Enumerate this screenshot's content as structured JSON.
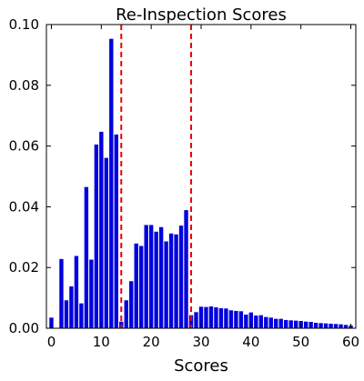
{
  "chart_data": {
    "type": "bar",
    "title": "Re-Inspection Scores",
    "xlabel": "Scores",
    "ylabel": "",
    "xlim": [
      -1,
      61
    ],
    "ylim": [
      0,
      0.1
    ],
    "x_ticks": [
      0,
      10,
      20,
      30,
      40,
      50,
      60
    ],
    "y_ticks": [
      0.0,
      0.02,
      0.04,
      0.06,
      0.08,
      0.1
    ],
    "x_tick_labels": [
      "0",
      "10",
      "20",
      "30",
      "40",
      "50",
      "60"
    ],
    "y_tick_labels": [
      "0.00",
      "0.02",
      "0.04",
      "0.06",
      "0.08",
      "0.10"
    ],
    "grid": false,
    "bar_color": "#0000dd",
    "reference_line_color": "#ee0000",
    "reference_lines_x": [
      14,
      28
    ],
    "x": [
      0,
      1,
      2,
      3,
      4,
      5,
      6,
      7,
      8,
      9,
      10,
      11,
      12,
      13,
      14,
      15,
      16,
      17,
      18,
      19,
      20,
      21,
      22,
      23,
      24,
      25,
      26,
      27,
      28,
      29,
      30,
      31,
      32,
      33,
      34,
      35,
      36,
      37,
      38,
      39,
      40,
      41,
      42,
      43,
      44,
      45,
      46,
      47,
      48,
      49,
      50,
      51,
      52,
      53,
      54,
      55,
      56,
      57,
      58,
      59,
      60
    ],
    "values": [
      0.0035,
      0,
      0.0228,
      0.0092,
      0.0138,
      0.0238,
      0.0082,
      0.0465,
      0.0226,
      0.0605,
      0.0647,
      0.0561,
      0.0953,
      0.0638,
      0.0022,
      0.0092,
      0.0155,
      0.0279,
      0.0271,
      0.034,
      0.034,
      0.0318,
      0.0333,
      0.0286,
      0.0312,
      0.0309,
      0.0338,
      0.0389,
      0.0043,
      0.0053,
      0.0071,
      0.007,
      0.0072,
      0.0069,
      0.0066,
      0.0065,
      0.0059,
      0.0057,
      0.0056,
      0.0045,
      0.0052,
      0.0042,
      0.0043,
      0.0037,
      0.0035,
      0.0031,
      0.0031,
      0.0027,
      0.0026,
      0.0025,
      0.0024,
      0.0022,
      0.0021,
      0.0018,
      0.0017,
      0.0016,
      0.0015,
      0.0014,
      0.0013,
      0.0011,
      0.0009
    ]
  }
}
